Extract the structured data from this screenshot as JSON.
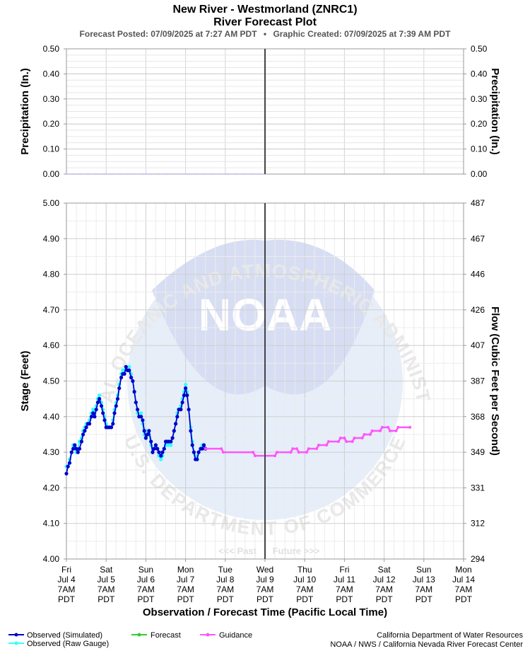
{
  "header": {
    "title_line1": "New River - Westmorland (ZNRC1)",
    "title_line2": "River Forecast Plot",
    "subtitle_posted": "Forecast Posted: 07/09/2025 at 7:27 AM PDT",
    "subtitle_sep": "•",
    "subtitle_created": "Graphic Created: 07/09/2025 at 7:39 AM PDT"
  },
  "watermark": {
    "logo_text": "NOAA",
    "ring_top": "NATIONAL OCEANIC AND ATMOSPHERIC ADMINISTRATION",
    "ring_bottom": "U.S. DEPARTMENT OF COMMERCE"
  },
  "past_label": "<<< Past",
  "future_label": "Future >>>",
  "x_axis_label": "Observation / Forecast Time (Pacific Local Time)",
  "legend": [
    {
      "label": "Observed (Simulated)",
      "color": "#0000cc"
    },
    {
      "label": "Observed (Raw Gauge)",
      "color": "#33ffff"
    },
    {
      "label": "Forecast",
      "color": "#33cc33"
    },
    {
      "label": "Guidance",
      "color": "#ff55ff"
    }
  ],
  "credits": {
    "line1": "California Department of Water Resources",
    "line2": "NOAA / NWS / California Nevada River Forecast Center"
  },
  "chart_data": [
    {
      "type": "line",
      "panel": "precipitation",
      "ylabel_left": "Precipitation (In.)",
      "ylabel_right": "Precipitation (In.)",
      "ylim": [
        0,
        0.5
      ],
      "y_ticks": [
        "0.00",
        "0.10",
        "0.20",
        "0.30",
        "0.40",
        "0.50"
      ],
      "series": [
        {
          "values": [
            0,
            0
          ],
          "x": [
            "Jul 4 7AM",
            "Jul 9 7AM"
          ],
          "color": "#aaaaff",
          "dashed": true
        }
      ],
      "grid": true
    },
    {
      "type": "line",
      "panel": "stage_flow",
      "ylabel_left": "Stage (Feet)",
      "ylabel_right": "Flow (Cubic Feet per Second)",
      "ylim": [
        4.0,
        5.0
      ],
      "y_ticks": [
        "4.00",
        "4.10",
        "4.20",
        "4.30",
        "4.40",
        "4.50",
        "4.60",
        "4.70",
        "4.80",
        "4.90",
        "5.00"
      ],
      "y_right_ticks": [
        "294",
        "312",
        "331",
        "349",
        "368",
        "387",
        "407",
        "426",
        "446",
        "467",
        "487"
      ],
      "x_unit": "days since Fri Jul 4 7AM PDT",
      "x_ticks": [
        {
          "day": "Fri",
          "date": "Jul 4",
          "time": "7AM",
          "tz": "PDT"
        },
        {
          "day": "Sat",
          "date": "Jul 5",
          "time": "7AM",
          "tz": "PDT"
        },
        {
          "day": "Sun",
          "date": "Jul 6",
          "time": "7AM",
          "tz": "PDT"
        },
        {
          "day": "Mon",
          "date": "Jul 7",
          "time": "7AM",
          "tz": "PDT"
        },
        {
          "day": "Tue",
          "date": "Jul 8",
          "time": "7AM",
          "tz": "PDT"
        },
        {
          "day": "Wed",
          "date": "Jul 9",
          "time": "7AM",
          "tz": "PDT"
        },
        {
          "day": "Thu",
          "date": "Jul 10",
          "time": "7AM",
          "tz": "PDT"
        },
        {
          "day": "Fri",
          "date": "Jul 11",
          "time": "7AM",
          "tz": "PDT"
        },
        {
          "day": "Sat",
          "date": "Jul 12",
          "time": "7AM",
          "tz": "PDT"
        },
        {
          "day": "Sun",
          "date": "Jul 13",
          "time": "7AM",
          "tz": "PDT"
        },
        {
          "day": "Mon",
          "date": "Jul 14",
          "time": "7AM",
          "tz": "PDT"
        }
      ],
      "now_x": 5.0,
      "grid": true,
      "series": [
        {
          "name": "Observed (Raw Gauge)",
          "color": "#33ffff",
          "points": [
            [
              0,
              4.26
            ],
            [
              0.04,
              4.26
            ],
            [
              0.08,
              4.28
            ],
            [
              0.13,
              4.3
            ],
            [
              0.17,
              4.32
            ],
            [
              0.21,
              4.31
            ],
            [
              0.25,
              4.3
            ],
            [
              0.29,
              4.31
            ],
            [
              0.33,
              4.33
            ],
            [
              0.38,
              4.34
            ],
            [
              0.42,
              4.36
            ],
            [
              0.46,
              4.37
            ],
            [
              0.5,
              4.38
            ],
            [
              0.54,
              4.38
            ],
            [
              0.58,
              4.39
            ],
            [
              0.63,
              4.41
            ],
            [
              0.67,
              4.42
            ],
            [
              0.71,
              4.41
            ],
            [
              0.75,
              4.43
            ],
            [
              0.79,
              4.45
            ],
            [
              0.83,
              4.46
            ],
            [
              0.88,
              4.44
            ],
            [
              0.92,
              4.42
            ],
            [
              0.96,
              4.4
            ],
            [
              1.0,
              4.38
            ],
            [
              1.04,
              4.37
            ],
            [
              1.08,
              4.37
            ],
            [
              1.13,
              4.37
            ],
            [
              1.17,
              4.39
            ],
            [
              1.21,
              4.42
            ],
            [
              1.25,
              4.44
            ],
            [
              1.29,
              4.46
            ],
            [
              1.33,
              4.49
            ],
            [
              1.38,
              4.52
            ],
            [
              1.42,
              4.53
            ],
            [
              1.46,
              4.53
            ],
            [
              1.5,
              4.54
            ],
            [
              1.54,
              4.53
            ],
            [
              1.58,
              4.54
            ],
            [
              1.63,
              4.52
            ],
            [
              1.67,
              4.5
            ],
            [
              1.71,
              4.47
            ],
            [
              1.75,
              4.44
            ],
            [
              1.79,
              4.41
            ],
            [
              1.83,
              4.4
            ],
            [
              1.88,
              4.41
            ],
            [
              1.92,
              4.38
            ],
            [
              1.96,
              4.35
            ],
            [
              2.0,
              4.34
            ],
            [
              2.04,
              4.36
            ],
            [
              2.08,
              4.35
            ],
            [
              2.13,
              4.32
            ],
            [
              2.17,
              4.3
            ],
            [
              2.21,
              4.31
            ],
            [
              2.25,
              4.32
            ],
            [
              2.29,
              4.31
            ],
            [
              2.33,
              4.29
            ],
            [
              2.38,
              4.28
            ],
            [
              2.42,
              4.29
            ],
            [
              2.46,
              4.31
            ],
            [
              2.5,
              4.32
            ],
            [
              2.54,
              4.32
            ],
            [
              2.58,
              4.32
            ],
            [
              2.63,
              4.32
            ],
            [
              2.67,
              4.34
            ],
            [
              2.71,
              4.36
            ],
            [
              2.75,
              4.38
            ],
            [
              2.79,
              4.41
            ],
            [
              2.83,
              4.42
            ],
            [
              2.88,
              4.43
            ],
            [
              2.92,
              4.45
            ],
            [
              2.96,
              4.47
            ],
            [
              3.0,
              4.49
            ],
            [
              3.04,
              4.47
            ],
            [
              3.08,
              4.42
            ],
            [
              3.13,
              4.37
            ],
            [
              3.17,
              4.33
            ],
            [
              3.21,
              4.3
            ],
            [
              3.25,
              4.29
            ],
            [
              3.29,
              4.28
            ],
            [
              3.33,
              4.3
            ],
            [
              3.38,
              4.31
            ],
            [
              3.42,
              4.32
            ],
            [
              3.46,
              4.32
            ]
          ]
        },
        {
          "name": "Observed (Simulated)",
          "color": "#0000cc",
          "points": [
            [
              0,
              4.24
            ],
            [
              0.04,
              4.26
            ],
            [
              0.08,
              4.27
            ],
            [
              0.13,
              4.3
            ],
            [
              0.17,
              4.31
            ],
            [
              0.21,
              4.32
            ],
            [
              0.25,
              4.31
            ],
            [
              0.29,
              4.3
            ],
            [
              0.33,
              4.31
            ],
            [
              0.38,
              4.33
            ],
            [
              0.42,
              4.35
            ],
            [
              0.46,
              4.36
            ],
            [
              0.5,
              4.37
            ],
            [
              0.54,
              4.38
            ],
            [
              0.58,
              4.38
            ],
            [
              0.63,
              4.4
            ],
            [
              0.67,
              4.41
            ],
            [
              0.71,
              4.4
            ],
            [
              0.75,
              4.42
            ],
            [
              0.79,
              4.44
            ],
            [
              0.83,
              4.45
            ],
            [
              0.88,
              4.43
            ],
            [
              0.92,
              4.41
            ],
            [
              0.96,
              4.39
            ],
            [
              1.0,
              4.37
            ],
            [
              1.04,
              4.37
            ],
            [
              1.08,
              4.37
            ],
            [
              1.13,
              4.37
            ],
            [
              1.17,
              4.38
            ],
            [
              1.21,
              4.41
            ],
            [
              1.25,
              4.43
            ],
            [
              1.29,
              4.45
            ],
            [
              1.33,
              4.48
            ],
            [
              1.38,
              4.51
            ],
            [
              1.42,
              4.52
            ],
            [
              1.46,
              4.52
            ],
            [
              1.5,
              4.54
            ],
            [
              1.54,
              4.53
            ],
            [
              1.58,
              4.53
            ],
            [
              1.63,
              4.51
            ],
            [
              1.67,
              4.5
            ],
            [
              1.71,
              4.47
            ],
            [
              1.75,
              4.44
            ],
            [
              1.79,
              4.42
            ],
            [
              1.83,
              4.4
            ],
            [
              1.88,
              4.4
            ],
            [
              1.92,
              4.39
            ],
            [
              1.96,
              4.36
            ],
            [
              2.0,
              4.34
            ],
            [
              2.04,
              4.35
            ],
            [
              2.08,
              4.36
            ],
            [
              2.13,
              4.33
            ],
            [
              2.17,
              4.3
            ],
            [
              2.21,
              4.31
            ],
            [
              2.25,
              4.32
            ],
            [
              2.29,
              4.31
            ],
            [
              2.33,
              4.3
            ],
            [
              2.38,
              4.29
            ],
            [
              2.42,
              4.3
            ],
            [
              2.46,
              4.31
            ],
            [
              2.5,
              4.33
            ],
            [
              2.54,
              4.33
            ],
            [
              2.58,
              4.33
            ],
            [
              2.63,
              4.33
            ],
            [
              2.67,
              4.34
            ],
            [
              2.71,
              4.36
            ],
            [
              2.75,
              4.38
            ],
            [
              2.79,
              4.4
            ],
            [
              2.83,
              4.42
            ],
            [
              2.88,
              4.42
            ],
            [
              2.92,
              4.44
            ],
            [
              2.96,
              4.46
            ],
            [
              3.0,
              4.48
            ],
            [
              3.04,
              4.46
            ],
            [
              3.08,
              4.42
            ],
            [
              3.13,
              4.36
            ],
            [
              3.17,
              4.32
            ],
            [
              3.21,
              4.3
            ],
            [
              3.25,
              4.28
            ],
            [
              3.29,
              4.28
            ],
            [
              3.33,
              4.3
            ],
            [
              3.38,
              4.31
            ],
            [
              3.42,
              4.31
            ],
            [
              3.46,
              4.32
            ],
            [
              3.5,
              4.31
            ]
          ]
        },
        {
          "name": "Guidance",
          "color": "#ff55ff",
          "step": true,
          "points": [
            [
              3.5,
              4.31
            ],
            [
              3.9,
              4.31
            ],
            [
              3.95,
              4.3
            ],
            [
              4.7,
              4.3
            ],
            [
              4.75,
              4.29
            ],
            [
              5.25,
              4.29
            ],
            [
              5.3,
              4.3
            ],
            [
              5.65,
              4.3
            ],
            [
              5.7,
              4.31
            ],
            [
              5.8,
              4.31
            ],
            [
              5.85,
              4.3
            ],
            [
              6.05,
              4.3
            ],
            [
              6.1,
              4.31
            ],
            [
              6.3,
              4.31
            ],
            [
              6.35,
              4.32
            ],
            [
              6.55,
              4.32
            ],
            [
              6.6,
              4.33
            ],
            [
              6.85,
              4.33
            ],
            [
              6.9,
              4.34
            ],
            [
              7.0,
              4.34
            ],
            [
              7.05,
              4.33
            ],
            [
              7.2,
              4.33
            ],
            [
              7.25,
              4.34
            ],
            [
              7.45,
              4.34
            ],
            [
              7.5,
              4.35
            ],
            [
              7.65,
              4.35
            ],
            [
              7.7,
              4.36
            ],
            [
              7.9,
              4.36
            ],
            [
              7.95,
              4.37
            ],
            [
              8.1,
              4.37
            ],
            [
              8.15,
              4.36
            ],
            [
              8.3,
              4.36
            ],
            [
              8.35,
              4.37
            ],
            [
              8.65,
              4.37
            ]
          ]
        }
      ]
    }
  ]
}
